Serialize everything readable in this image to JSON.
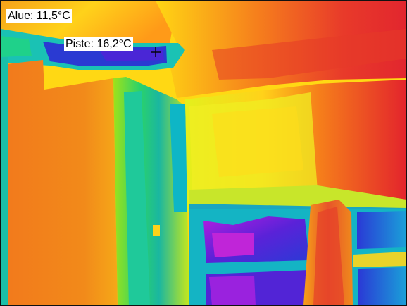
{
  "image": {
    "type": "thermal-camera-photo",
    "palette": "iron/rainbow",
    "subject": "room corner with window, thermal image"
  },
  "overlay": {
    "area_label": "Alue: 11,5°C",
    "spot_label": "Piste: 16,2°C",
    "spot_marker": "crosshair-icon"
  },
  "colors": {
    "hot": "#e8282a",
    "warm": "#f07b1a",
    "mid": "#ffde10",
    "cool": "#19c8b4",
    "cold": "#2a2ad0",
    "coldest": "#b020d8"
  }
}
